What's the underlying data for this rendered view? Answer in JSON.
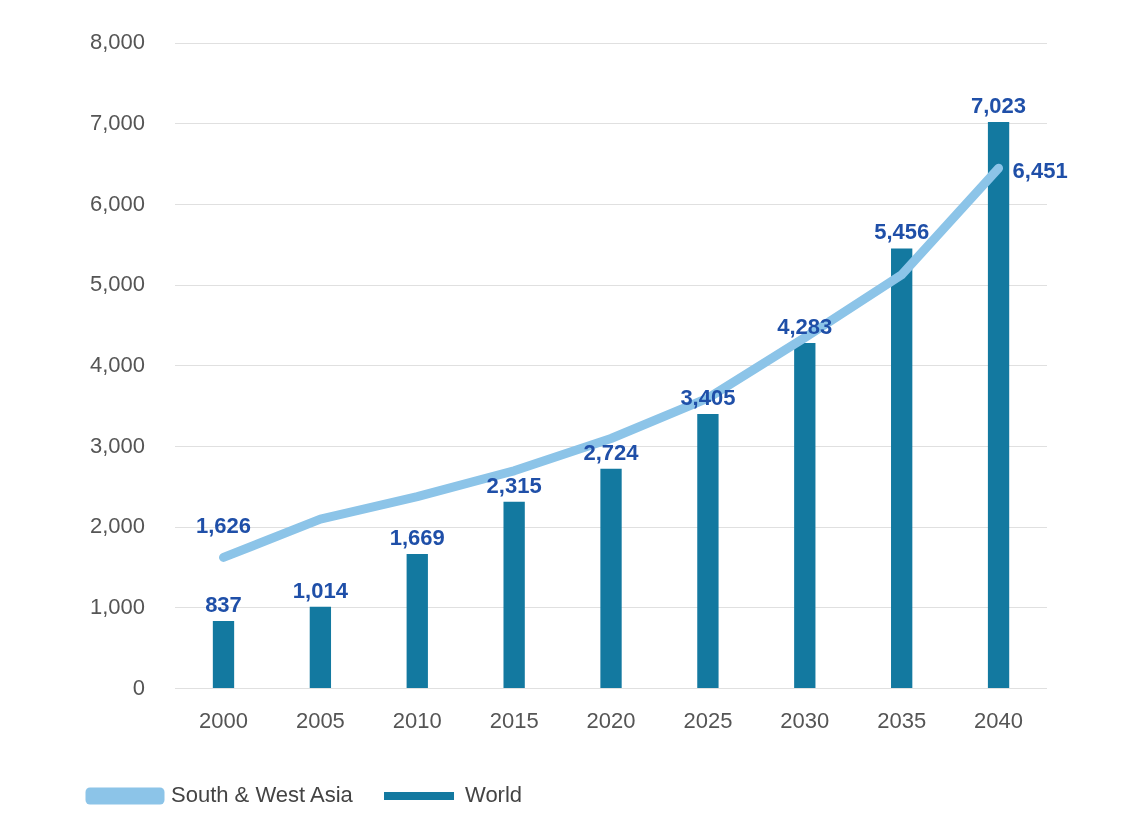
{
  "chart_data": {
    "type": "bar",
    "categories": [
      "2000",
      "2005",
      "2010",
      "2015",
      "2020",
      "2025",
      "2030",
      "2035",
      "2040"
    ],
    "series": [
      {
        "name": "South & West Asia",
        "type": "line",
        "color": "#8cc4e8",
        "values": [
          1626,
          2100,
          2380,
          2700,
          3100,
          3600,
          4350,
          5130,
          6451
        ],
        "value_labels": [
          "1,626",
          null,
          null,
          null,
          null,
          null,
          null,
          null,
          "6,451"
        ]
      },
      {
        "name": "World",
        "color": "#1379a0",
        "values": [
          837,
          1014,
          1669,
          2315,
          2724,
          3405,
          4283,
          5456,
          7023
        ],
        "value_labels": [
          "837",
          "1,014",
          "1,669",
          "2,315",
          "2,724",
          "3,405",
          "4,283",
          "5,456",
          "7,023"
        ]
      }
    ],
    "ylim": [
      0,
      8000
    ],
    "yticks": [
      {
        "value": 0,
        "label": "0"
      },
      {
        "value": 1000,
        "label": "1,000"
      },
      {
        "value": 2000,
        "label": "2,000"
      },
      {
        "value": 3000,
        "label": "3,000"
      },
      {
        "value": 4000,
        "label": "4,000"
      },
      {
        "value": 5000,
        "label": "5,000"
      },
      {
        "value": 6000,
        "label": "6,000"
      },
      {
        "value": 7000,
        "label": "7,000"
      },
      {
        "value": 8000,
        "label": "8,000"
      }
    ],
    "grid": "y",
    "legend": "bottom left",
    "marker": "none",
    "line_style": "solid"
  }
}
